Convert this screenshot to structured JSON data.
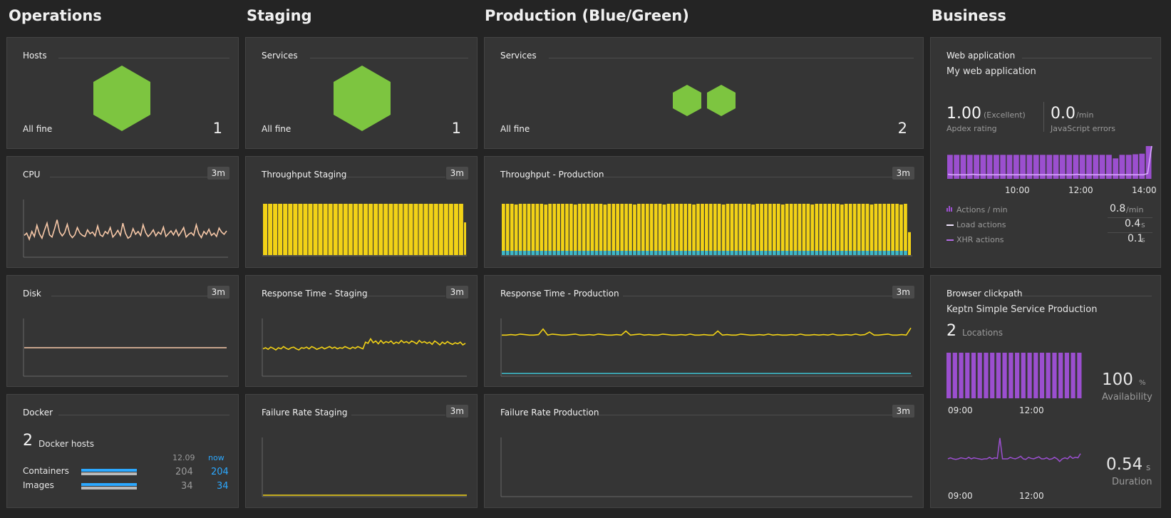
{
  "columns": {
    "operations": "Operations",
    "staging": "Staging",
    "production": "Production (Blue/Green)",
    "business": "Business"
  },
  "badge": "3m",
  "ops": {
    "hosts": {
      "title": "Hosts",
      "status": "All fine",
      "count": "1"
    },
    "cpu": {
      "title": "CPU"
    },
    "disk": {
      "title": "Disk"
    },
    "docker": {
      "title": "Docker",
      "hosts_count": "2",
      "hosts_label": "Docker hosts",
      "col_prev": "12.09",
      "col_now": "now",
      "rows": [
        {
          "label": "Containers",
          "prev": "204",
          "now": "204"
        },
        {
          "label": "Images",
          "prev": "34",
          "now": "34"
        }
      ]
    }
  },
  "staging": {
    "services": {
      "title": "Services",
      "status": "All fine",
      "count": "1"
    },
    "throughput": {
      "title": "Throughput Staging"
    },
    "response": {
      "title": "Response Time - Staging"
    },
    "failure": {
      "title": "Failure Rate Staging"
    }
  },
  "production": {
    "services": {
      "title": "Services",
      "status": "All fine",
      "count": "2"
    },
    "throughput": {
      "title": "Throughput - Production"
    },
    "response": {
      "title": "Response Time - Production"
    },
    "failure": {
      "title": "Failure Rate Production"
    }
  },
  "business": {
    "webapp": {
      "title": "Web application",
      "name": "My web application",
      "apdex_value": "1.00",
      "apdex_qual": "(Excellent)",
      "apdex_label": "Apdex rating",
      "js_value": "0.0",
      "js_unit": "/min",
      "js_label": "JavaScript errors",
      "ticks": [
        "10:00",
        "12:00",
        "14:00"
      ],
      "legend": [
        {
          "label": "Actions / min",
          "value": "0.8",
          "unit": "/min"
        },
        {
          "label": "Load actions",
          "value": "0.4",
          "unit": "s"
        },
        {
          "label": "XHR actions",
          "value": "0.1",
          "unit": "s"
        }
      ]
    },
    "clickpath": {
      "title": "Browser clickpath",
      "name": "Keptn Simple Service Production",
      "locations_count": "2",
      "locations_label": "Locations",
      "ticks": [
        "09:00",
        "12:00"
      ],
      "availability_value": "100",
      "availability_unit": "%",
      "availability_label": "Availability",
      "duration_value": "0.54",
      "duration_unit": "s",
      "duration_label": "Duration"
    }
  },
  "colors": {
    "hex": "#7dc540",
    "yellow": "#f2d216",
    "teal": "#3eb8c8",
    "peach": "#f7c8a8",
    "purple": "#9b4fcf",
    "purple_light": "#d9a8ff",
    "blue": "#2ca8ff"
  },
  "chart_data": [
    {
      "type": "line",
      "title": "CPU",
      "window": "3m",
      "values": [
        38,
        42,
        31,
        45,
        36,
        56,
        41,
        33,
        47,
        60,
        39,
        35,
        50,
        66,
        44,
        37,
        43,
        58,
        40,
        34,
        39,
        52,
        42,
        38,
        36,
        48,
        41,
        44,
        37,
        55,
        39,
        36,
        45,
        41,
        52,
        35,
        40,
        47,
        38,
        60,
        42,
        33,
        36,
        50,
        40,
        45,
        38,
        57,
        43,
        36,
        41,
        48,
        37,
        44,
        40,
        53,
        36,
        41,
        46,
        39,
        48,
        37,
        44,
        52,
        35,
        40,
        43,
        38,
        57,
        41,
        34,
        45,
        40,
        49,
        38,
        42,
        36,
        51,
        44,
        40,
        46
      ]
    },
    {
      "type": "line",
      "title": "Disk",
      "window": "3m",
      "values": [
        50,
        50,
        50,
        50,
        50,
        50,
        50,
        50,
        50,
        50,
        50,
        50,
        50,
        50,
        50,
        50,
        50,
        50,
        50,
        50
      ]
    },
    {
      "type": "bar",
      "title": "Throughput Staging",
      "window": "3m",
      "bar_count": 40,
      "value_relative": 1.0
    },
    {
      "type": "line",
      "title": "Response Time - Staging",
      "window": "3m",
      "values": [
        48,
        50,
        47,
        51,
        49,
        46,
        50,
        48,
        52,
        49,
        47,
        50,
        51,
        48,
        46,
        50,
        49,
        51,
        48,
        52,
        50,
        47,
        49,
        51,
        48,
        50,
        52,
        49,
        51,
        48,
        50,
        49,
        52,
        50,
        48,
        51,
        49,
        52,
        50,
        48,
        60,
        58,
        66,
        59,
        62,
        57,
        63,
        58,
        61,
        59,
        62,
        57,
        60,
        58,
        63,
        59,
        61,
        58,
        62,
        60,
        57,
        63,
        59,
        61,
        58,
        60,
        56,
        62,
        59,
        55,
        60,
        57,
        61,
        58,
        56,
        59,
        57,
        60,
        55,
        58
      ]
    },
    {
      "type": "bar",
      "title": "Throughput - Production",
      "window": "3m",
      "bar_count": 96,
      "series": [
        {
          "name": "",
          "color": "#f2d216"
        },
        {
          "name": "",
          "color": "#3eb8c8"
        }
      ]
    },
    {
      "type": "line",
      "title": "Response Time - Production",
      "window": "3m",
      "series": [
        {
          "color": "#f2d216",
          "values": [
            80,
            80,
            81,
            80,
            82,
            81,
            80,
            80,
            81,
            92,
            80,
            82,
            81,
            80,
            80,
            81,
            82,
            80,
            80,
            81,
            80,
            82,
            81,
            80,
            80,
            81,
            80,
            88,
            80,
            81,
            82,
            80,
            81,
            80,
            80,
            82,
            81,
            80,
            80,
            81,
            80,
            82,
            80,
            80,
            81,
            80,
            80,
            88,
            80,
            81,
            80,
            80,
            82,
            81,
            80,
            80,
            81,
            80,
            82,
            80,
            81,
            80,
            80,
            81,
            80,
            82,
            80,
            80,
            81,
            80,
            81,
            80,
            82,
            80,
            80,
            81,
            80,
            82,
            80,
            81,
            86,
            80,
            80,
            81,
            82,
            80,
            80,
            81,
            80,
            94
          ]
        },
        {
          "color": "#3eb8c8",
          "values": [
            20,
            20,
            20,
            20,
            20,
            20,
            20,
            20,
            20,
            20,
            20,
            20,
            20,
            20,
            20,
            20,
            20,
            20,
            20,
            20
          ]
        }
      ]
    },
    {
      "type": "line",
      "title": "Failure Rate Staging",
      "window": "3m",
      "values": [
        0,
        0,
        0,
        0,
        0,
        0,
        0,
        0,
        0,
        0
      ]
    },
    {
      "type": "line",
      "title": "Failure Rate Production",
      "window": "3m",
      "values": []
    },
    {
      "type": "bar",
      "title": "Web application",
      "x_ticks": [
        "10:00",
        "12:00",
        "14:00"
      ],
      "bars": [
        0.88,
        0.88,
        0.88,
        0.88,
        0.88,
        0.88,
        0.88,
        0.88,
        0.88,
        0.88,
        0.88,
        0.88,
        0.88,
        0.88,
        0.88,
        0.88,
        0.88,
        0.88,
        0.88,
        0.88,
        0.88,
        0.88,
        0.88,
        0.88,
        0.88,
        0.75,
        0.88,
        0.88,
        0.9,
        0.92,
        1.2
      ],
      "line": [
        0.12,
        0.1,
        0.1,
        0.1,
        0.1,
        0.1,
        0.12,
        0.1,
        0.1,
        0.1,
        0.1,
        0.1,
        0.1,
        0.1,
        0.1,
        0.1,
        0.1,
        0.1,
        0.1,
        0.1,
        0.1,
        0.1,
        0.1,
        0.1,
        0.1,
        0.1,
        0.1,
        0.1,
        0.1,
        0.1,
        0.1,
        0.12,
        0.1,
        0.1,
        0.1,
        0.1,
        0.1,
        0.1,
        0.1,
        0.1,
        0.1,
        0.1,
        0.1,
        0.1,
        0.1,
        0.1,
        0.1,
        0.1,
        0.15,
        1.2
      ]
    },
    {
      "type": "bar",
      "title": "Browser clickpath availability",
      "x_ticks": [
        "09:00",
        "12:00"
      ],
      "bar_count": 22,
      "value": 100
    },
    {
      "type": "line",
      "title": "Browser clickpath duration",
      "x_ticks": [
        "09:00",
        "12:00"
      ],
      "values": [
        0.5,
        0.52,
        0.5,
        0.49,
        0.5,
        0.52,
        0.51,
        0.5,
        0.53,
        0.5,
        0.52,
        0.51,
        0.5,
        0.49,
        0.5,
        0.5,
        0.53,
        0.5,
        0.52,
        0.51,
        0.9,
        0.5,
        0.5,
        0.5,
        0.53,
        0.51,
        0.5,
        0.52,
        0.55,
        0.5,
        0.49,
        0.53,
        0.51,
        0.5,
        0.52,
        0.54,
        0.5,
        0.5,
        0.52,
        0.49,
        0.5,
        0.53,
        0.5,
        0.45,
        0.5,
        0.52,
        0.5,
        0.55,
        0.51,
        0.53,
        0.52,
        0.6
      ]
    }
  ]
}
